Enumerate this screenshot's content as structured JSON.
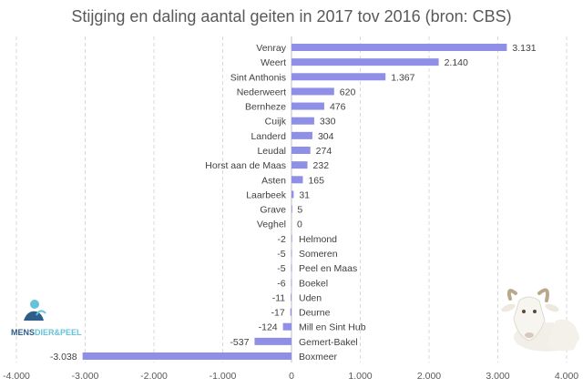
{
  "chart_data": {
    "type": "bar",
    "orientation": "horizontal",
    "title": "Stijging en daling aantal geiten in 2017 tov 2016 (bron: CBS)",
    "xlabel": "",
    "ylabel": "",
    "xlim": [
      -4000,
      4000
    ],
    "xticks": [
      -4000,
      -3000,
      -2000,
      -1000,
      0,
      1000,
      2000,
      3000,
      4000
    ],
    "xtick_labels": [
      "-4.000",
      "-3.000",
      "-2.000",
      "-1.000",
      "0",
      "1.000",
      "2.000",
      "3.000",
      "4.000"
    ],
    "grid": true,
    "bar_color": "#8f8fe8",
    "categories": [
      "Venray",
      "Weert",
      "Sint Anthonis",
      "Nederweert",
      "Bernheze",
      "Cuijk",
      "Landerd",
      "Leudal",
      "Horst aan de Maas",
      "Asten",
      "Laarbeek",
      "Grave",
      "Veghel",
      "Helmond",
      "Someren",
      "Peel en Maas",
      "Boekel",
      "Uden",
      "Deurne",
      "Mill en Sint Hub",
      "Gemert-Bakel",
      "Boxmeer"
    ],
    "values": [
      3131,
      2140,
      1367,
      620,
      476,
      330,
      304,
      274,
      232,
      165,
      31,
      5,
      0,
      -2,
      -5,
      -5,
      -6,
      -11,
      -17,
      -124,
      -537,
      -3038
    ],
    "value_labels": [
      "3.131",
      "2.140",
      "1.367",
      "620",
      "476",
      "330",
      "304",
      "274",
      "232",
      "165",
      "31",
      "5",
      "0",
      "-2",
      "-5",
      "-5",
      "-6",
      "-11",
      "-17",
      "-124",
      "-537",
      "-3.038"
    ]
  },
  "logo": {
    "text_mens": "MENS",
    "text_dier": "DIER",
    "text_and": "&",
    "text_peel": "PEEL",
    "color_dark": "#2f5d8a",
    "color_light": "#66c2d8"
  },
  "decoration": {
    "goat_icon": "goat-icon"
  }
}
